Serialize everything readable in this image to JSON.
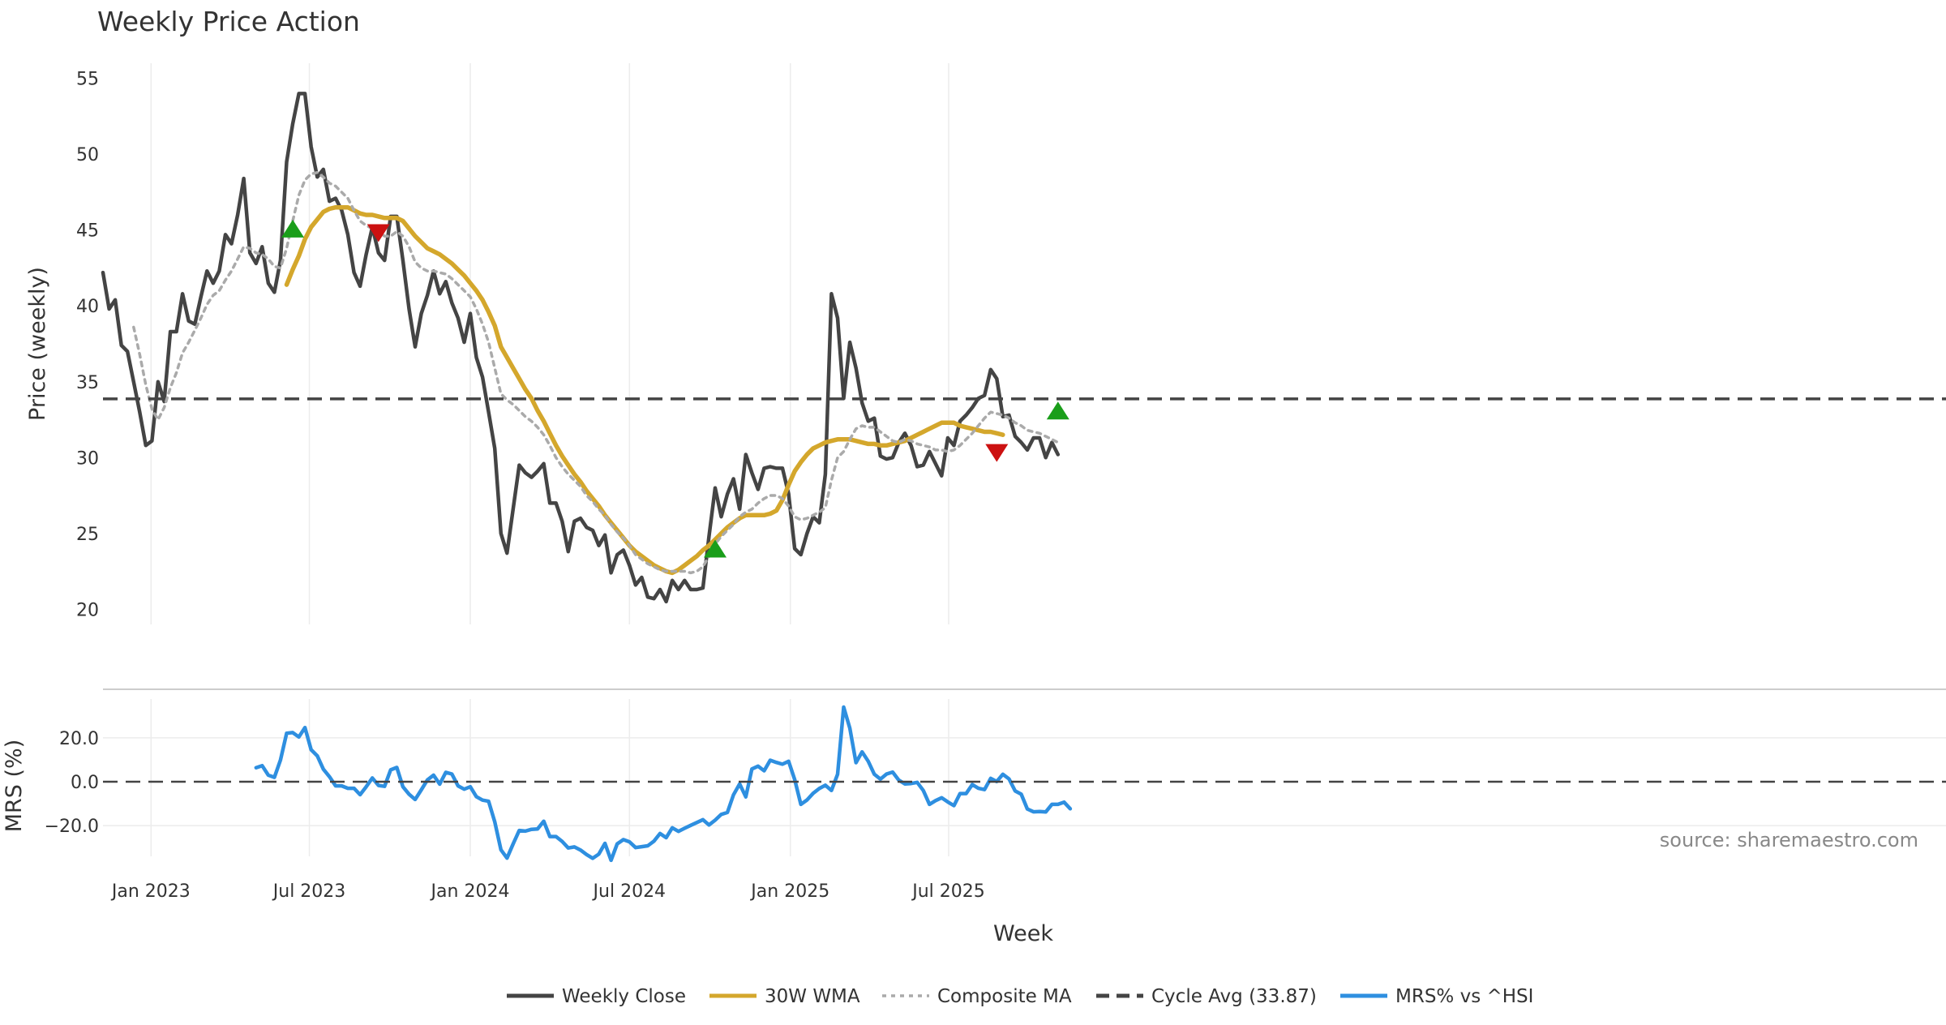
{
  "chart_data": {
    "type": "line",
    "title": "Weekly Price Action",
    "source": "source: sharemaestro.com",
    "xlabel": "Week",
    "x_start": "2022-11-07",
    "x_interval_days": 7,
    "x_ticks": [
      "Jan 2023",
      "Jul 2023",
      "Jan 2024",
      "Jul 2024",
      "Jan 2025",
      "Jul 2025"
    ],
    "price_panel": {
      "ylabel": "Price (weekly)",
      "ylim": [
        19,
        56
      ],
      "yticks": [
        "20",
        "25",
        "30",
        "35",
        "40",
        "45",
        "50",
        "55"
      ],
      "series": [
        {
          "name": "Weekly Close",
          "color": "#444444",
          "style": "solid",
          "values": [
            42.2,
            39.8,
            40.4,
            37.4,
            37.0,
            35.0,
            33.0,
            30.8,
            31.1,
            35.0,
            33.7,
            38.3,
            38.3,
            40.8,
            39.0,
            38.8,
            40.6,
            42.3,
            41.5,
            42.3,
            44.7,
            44.1,
            46.0,
            48.4,
            43.5,
            42.8,
            43.9,
            41.5,
            40.9,
            43.0,
            49.5,
            52.0,
            54.0,
            54.0,
            50.5,
            48.5,
            49.0,
            46.9,
            47.1,
            46.3,
            44.7,
            42.2,
            41.3,
            43.4,
            45.2,
            43.5,
            43.0,
            45.9,
            45.9,
            43.0,
            39.8,
            37.3,
            39.5,
            40.7,
            42.3,
            40.8,
            41.6,
            40.2,
            39.2,
            37.6,
            39.5,
            36.6,
            35.3,
            33.0,
            30.6,
            25.0,
            23.7,
            26.6,
            29.5,
            29.0,
            28.7,
            29.1,
            29.6,
            27.0,
            27.0,
            25.8,
            23.8,
            25.8,
            26.0,
            25.4,
            25.2,
            24.2,
            24.9,
            22.4,
            23.6,
            23.9,
            22.9,
            21.6,
            22.1,
            20.8,
            20.7,
            21.3,
            20.5,
            21.9,
            21.3,
            21.9,
            21.3,
            21.3,
            21.4,
            24.8,
            28.0,
            26.1,
            27.6,
            28.6,
            26.6,
            30.2,
            29.0,
            27.9,
            29.3,
            29.4,
            29.3,
            29.3,
            27.6,
            24.0,
            23.6,
            25.0,
            26.1,
            25.7,
            28.9,
            40.8,
            39.2,
            33.9,
            37.6,
            35.9,
            33.6,
            32.4,
            32.6,
            30.1,
            29.9,
            30.0,
            31.0,
            31.6,
            30.8,
            29.4,
            29.5,
            30.4,
            29.6,
            28.8,
            31.3,
            30.8,
            32.4,
            32.8,
            33.3,
            33.9,
            34.1,
            35.8,
            35.2,
            32.7,
            32.8,
            31.4,
            31.0,
            30.5,
            31.3,
            31.3,
            30.0,
            31.0,
            30.2
          ]
        },
        {
          "name": "30W WMA",
          "color": "#D4A72C",
          "style": "solid",
          "values": [
            null,
            null,
            null,
            null,
            null,
            null,
            null,
            null,
            null,
            null,
            null,
            null,
            null,
            null,
            null,
            null,
            null,
            null,
            null,
            null,
            null,
            null,
            null,
            null,
            null,
            null,
            null,
            null,
            null,
            null,
            41.4,
            42.4,
            43.3,
            44.4,
            45.2,
            45.7,
            46.2,
            46.4,
            46.5,
            46.5,
            46.5,
            46.3,
            46.1,
            46.0,
            46.0,
            45.9,
            45.8,
            45.8,
            45.8,
            45.6,
            45.1,
            44.6,
            44.2,
            43.8,
            43.6,
            43.4,
            43.1,
            42.8,
            42.4,
            42.0,
            41.5,
            41.0,
            40.4,
            39.6,
            38.7,
            37.3,
            36.6,
            35.9,
            35.2,
            34.5,
            33.9,
            33.1,
            32.4,
            31.6,
            30.8,
            30.1,
            29.5,
            28.9,
            28.4,
            27.8,
            27.3,
            26.8,
            26.2,
            25.7,
            25.2,
            24.7,
            24.2,
            23.8,
            23.5,
            23.2,
            22.9,
            22.7,
            22.5,
            22.4,
            22.6,
            22.9,
            23.2,
            23.5,
            23.9,
            24.2,
            24.6,
            25.0,
            25.4,
            25.7,
            26.0,
            26.2,
            26.2,
            26.2,
            26.2,
            26.3,
            26.5,
            27.2,
            28.2,
            29.1,
            29.7,
            30.2,
            30.6,
            30.8,
            31.0,
            31.1,
            31.2,
            31.2,
            31.2,
            31.1,
            31.0,
            30.9,
            30.9,
            30.8,
            30.8,
            30.9,
            31.0,
            31.1,
            31.3,
            31.5,
            31.7,
            31.9,
            32.1,
            32.3,
            32.3,
            32.3,
            32.1,
            32.0,
            31.9,
            31.8,
            31.7,
            31.7,
            31.6,
            31.5
          ]
        },
        {
          "name": "Composite MA",
          "color": "#AAAAAA",
          "style": "dotted",
          "values": [
            null,
            null,
            null,
            null,
            null,
            38.6,
            36.8,
            34.8,
            33.2,
            32.5,
            33.3,
            34.6,
            35.6,
            36.9,
            37.6,
            38.4,
            39.2,
            40.1,
            40.7,
            41.0,
            41.7,
            42.3,
            43.1,
            43.9,
            43.8,
            43.5,
            43.4,
            43.1,
            42.6,
            42.5,
            43.8,
            45.6,
            47.3,
            48.3,
            48.7,
            48.8,
            48.5,
            48.1,
            47.9,
            47.5,
            47.1,
            46.3,
            45.6,
            45.3,
            45.1,
            44.9,
            44.6,
            44.6,
            44.9,
            44.6,
            43.9,
            42.9,
            42.5,
            42.3,
            42.3,
            42.2,
            42.1,
            41.8,
            41.4,
            41.0,
            40.6,
            39.8,
            38.8,
            37.6,
            35.9,
            34.2,
            33.8,
            33.5,
            33.1,
            32.7,
            32.4,
            32.0,
            31.5,
            30.8,
            30.0,
            29.4,
            28.9,
            28.5,
            28.1,
            27.5,
            27.1,
            26.6,
            26.2,
            25.6,
            25.1,
            24.7,
            24.2,
            23.6,
            23.3,
            23.0,
            22.8,
            22.6,
            22.5,
            22.5,
            22.5,
            22.5,
            22.4,
            22.5,
            22.8,
            23.5,
            24.3,
            24.8,
            25.2,
            25.6,
            26.1,
            26.4,
            26.6,
            27.0,
            27.3,
            27.5,
            27.5,
            27.3,
            26.8,
            26.1,
            25.9,
            26.0,
            26.2,
            26.4,
            26.7,
            28.5,
            30.0,
            30.4,
            31.2,
            31.9,
            32.1,
            32.0,
            32.0,
            31.7,
            31.4,
            31.1,
            31.0,
            31.2,
            31.1,
            30.9,
            30.8,
            30.7,
            30.5,
            30.5,
            30.4,
            30.5,
            30.8,
            31.2,
            31.6,
            32.1,
            32.6,
            33.0,
            32.9,
            32.8,
            32.6,
            32.3,
            32.1,
            31.8,
            31.7,
            31.6,
            31.4,
            31.2,
            31.0
          ]
        },
        {
          "name": "Cycle Avg (33.87)",
          "color": "#444444",
          "style": "dashed",
          "value": 33.87
        }
      ],
      "signals": [
        {
          "type": "buy",
          "week": 31,
          "price": 45.1
        },
        {
          "type": "sell",
          "week": 45,
          "price": 44.8
        },
        {
          "type": "buy",
          "week": 100,
          "price": 24.0
        },
        {
          "type": "sell",
          "week": 146,
          "price": 30.3
        },
        {
          "type": "buy",
          "week": 156,
          "price": 33.1
        }
      ]
    },
    "mrs_panel": {
      "ylabel": "MRS (%)",
      "ylim": [
        -34,
        34
      ],
      "yticks": [
        "20.0",
        "0.0",
        "−20.0"
      ],
      "series": [
        {
          "name": "MRS% vs ^HSI",
          "color": "#2E8FE0",
          "style": "solid",
          "start_week": 25,
          "values": [
            6.4,
            7.3,
            3.0,
            2.0,
            9.9,
            22.1,
            22.4,
            20.4,
            24.7,
            14.6,
            11.8,
            5.7,
            2.3,
            -1.9,
            -1.9,
            -3.0,
            -3.0,
            -5.9,
            -2.3,
            1.7,
            -1.7,
            -2.1,
            5.4,
            6.5,
            -2.3,
            -5.7,
            -8.1,
            -3.7,
            0.8,
            3.0,
            -1.1,
            4.3,
            3.5,
            -1.9,
            -3.4,
            -2.3,
            -6.8,
            -8.4,
            -8.9,
            -18.3,
            -31.0,
            -34.8,
            -28.4,
            -22.2,
            -22.5,
            -21.7,
            -21.5,
            -18.0,
            -25.0,
            -25.0,
            -27.2,
            -30.2,
            -29.7,
            -31.1,
            -33.2,
            -34.9,
            -33.0,
            -28.1,
            -35.8,
            -28.3,
            -26.4,
            -27.4,
            -30.0,
            -29.6,
            -29.2,
            -27.1,
            -23.6,
            -25.5,
            -21.0,
            -22.6,
            -21.2,
            -19.9,
            -18.6,
            -17.3,
            -19.7,
            -17.5,
            -14.9,
            -14.0,
            -6.0,
            -1.0,
            -6.9,
            5.8,
            7.1,
            5.0,
            9.8,
            8.8,
            8.0,
            9.3,
            1.0,
            -10.3,
            -8.3,
            -5.3,
            -3.1,
            -1.6,
            -4.0,
            3.4,
            34.0,
            24.4,
            8.7,
            13.6,
            9.3,
            3.4,
            1.2,
            3.5,
            4.4,
            0.7,
            -1.0,
            -0.8,
            -0.3,
            -4.0,
            -10.3,
            -8.6,
            -7.3,
            -9.2,
            -10.9,
            -5.4,
            -5.4,
            -1.3,
            -3.0,
            -3.6,
            1.5,
            0.1,
            3.4,
            1.3,
            -4.2,
            -5.7,
            -12.4,
            -13.7,
            -13.6,
            -13.8,
            -10.3,
            -10.3,
            -9.3,
            -12.3
          ]
        },
        {
          "name": "",
          "color": "#444444",
          "style": "dashed",
          "value": 0
        }
      ]
    },
    "legend": {
      "placement": "bottom-center",
      "entries": [
        {
          "label": "Weekly Close",
          "color": "#444444",
          "style": "solid"
        },
        {
          "label": "30W WMA",
          "color": "#D4A72C",
          "style": "solid"
        },
        {
          "label": "Composite MA",
          "color": "#AAAAAA",
          "style": "dotted"
        },
        {
          "label": "Cycle Avg (33.87)",
          "color": "#444444",
          "style": "dashed"
        },
        {
          "label": "MRS% vs ^HSI",
          "color": "#2E8FE0",
          "style": "solid"
        }
      ]
    },
    "signal_colors": {
      "buy": "#1A9E1A",
      "sell": "#CC1111"
    },
    "grid": true
  }
}
